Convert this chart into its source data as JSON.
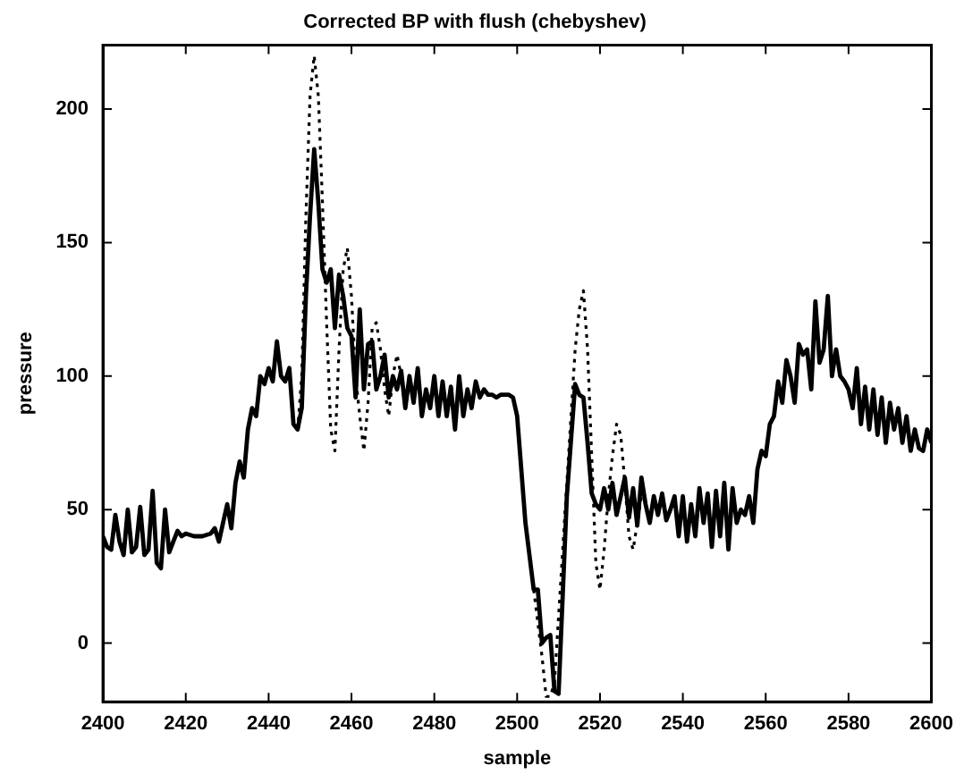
{
  "chart_data": {
    "type": "line",
    "title": "Corrected BP with flush (chebyshev)",
    "xlabel": "sample",
    "ylabel": "pressure",
    "xlim": [
      2400,
      2600
    ],
    "xticks": [
      2400,
      2420,
      2440,
      2460,
      2480,
      2500,
      2520,
      2540,
      2560,
      2580,
      2600
    ],
    "ylim": [
      -22,
      224
    ],
    "yticks": [
      0,
      50,
      100,
      150,
      200
    ],
    "grid": false,
    "legend": false,
    "marker": "none",
    "series": [
      {
        "color": "#000000",
        "line_style": "dotted",
        "x": [
          2447,
          2448,
          2449,
          2450,
          2451,
          2452,
          2453,
          2454,
          2455,
          2456,
          2457,
          2458,
          2459,
          2460,
          2461,
          2462,
          2463,
          2464,
          2465,
          2466,
          2467,
          2468,
          2469,
          2470,
          2471,
          2472,
          2488,
          2504,
          2506,
          2507,
          2508,
          2509,
          2510,
          2512,
          2514,
          2515,
          2516,
          2517,
          2518,
          2519,
          2520,
          2521,
          2522,
          2523,
          2524,
          2525,
          2526,
          2527,
          2528,
          2529,
          2530
        ],
        "values": [
          80,
          100,
          160,
          205,
          220,
          205,
          165,
          120,
          80,
          72,
          110,
          140,
          148,
          130,
          100,
          85,
          72,
          90,
          118,
          120,
          110,
          95,
          85,
          100,
          108,
          100,
          null,
          20,
          -5,
          -20,
          -20,
          -15,
          10,
          60,
          110,
          125,
          132,
          110,
          70,
          30,
          20,
          35,
          55,
          70,
          82,
          78,
          60,
          40,
          35,
          45,
          55
        ]
      },
      {
        "color": "#000000",
        "line_style": "solid",
        "x": [
          2400,
          2401,
          2402,
          2403,
          2404,
          2405,
          2406,
          2407,
          2408,
          2409,
          2410,
          2411,
          2412,
          2413,
          2414,
          2415,
          2416,
          2417,
          2418,
          2419,
          2420,
          2422,
          2424,
          2426,
          2427,
          2428,
          2429,
          2430,
          2431,
          2432,
          2433,
          2434,
          2435,
          2436,
          2437,
          2438,
          2439,
          2440,
          2441,
          2442,
          2443,
          2444,
          2445,
          2446,
          2447,
          2448,
          2449,
          2450,
          2451,
          2452,
          2453,
          2454,
          2455,
          2456,
          2457,
          2458,
          2459,
          2460,
          2461,
          2462,
          2463,
          2464,
          2465,
          2466,
          2467,
          2468,
          2469,
          2470,
          2471,
          2472,
          2473,
          2474,
          2475,
          2476,
          2477,
          2478,
          2479,
          2480,
          2481,
          2482,
          2483,
          2484,
          2485,
          2486,
          2487,
          2488,
          2489,
          2490,
          2491,
          2492,
          2493,
          2494,
          2495,
          2496,
          2497,
          2498,
          2499,
          2500,
          2502,
          2504,
          2505,
          2506,
          2507,
          2508,
          2509,
          2510,
          2512,
          2514,
          2515,
          2516,
          2517,
          2518,
          2519,
          2520,
          2521,
          2522,
          2523,
          2524,
          2525,
          2526,
          2527,
          2528,
          2529,
          2530,
          2531,
          2532,
          2533,
          2534,
          2535,
          2536,
          2537,
          2538,
          2539,
          2540,
          2541,
          2542,
          2543,
          2544,
          2545,
          2546,
          2547,
          2548,
          2549,
          2550,
          2551,
          2552,
          2553,
          2554,
          2555,
          2556,
          2557,
          2558,
          2559,
          2560,
          2561,
          2562,
          2563,
          2564,
          2565,
          2566,
          2567,
          2568,
          2569,
          2570,
          2571,
          2572,
          2573,
          2574,
          2575,
          2576,
          2577,
          2578,
          2579,
          2580,
          2581,
          2582,
          2583,
          2584,
          2585,
          2586,
          2587,
          2588,
          2589,
          2590,
          2591,
          2592,
          2593,
          2594,
          2595,
          2596,
          2597,
          2598,
          2599,
          2600
        ],
        "values": [
          40,
          36,
          35,
          48,
          38,
          33,
          50,
          34,
          36,
          51,
          33,
          35,
          57,
          30,
          28,
          50,
          34,
          38,
          42,
          40,
          41,
          40,
          40,
          41,
          43,
          38,
          45,
          52,
          43,
          60,
          68,
          62,
          80,
          88,
          85,
          100,
          97,
          103,
          98,
          113,
          100,
          98,
          103,
          82,
          80,
          88,
          130,
          160,
          185,
          165,
          140,
          135,
          140,
          118,
          138,
          130,
          118,
          115,
          92,
          125,
          95,
          112,
          113,
          95,
          100,
          108,
          92,
          100,
          95,
          102,
          88,
          100,
          90,
          103,
          85,
          95,
          88,
          100,
          85,
          98,
          85,
          96,
          80,
          100,
          85,
          95,
          88,
          98,
          92,
          95,
          93,
          93,
          92,
          93,
          93,
          93,
          92,
          85,
          45,
          20,
          20,
          0,
          2,
          3,
          -18,
          -19,
          55,
          97,
          93,
          92,
          75,
          56,
          52,
          50,
          58,
          50,
          60,
          48,
          55,
          62,
          47,
          58,
          44,
          62,
          52,
          45,
          55,
          48,
          56,
          46,
          50,
          55,
          40,
          55,
          38,
          52,
          40,
          58,
          45,
          56,
          36,
          57,
          40,
          60,
          35,
          58,
          45,
          50,
          48,
          55,
          45,
          65,
          72,
          70,
          82,
          85,
          98,
          90,
          106,
          100,
          90,
          112,
          108,
          110,
          95,
          128,
          105,
          110,
          130,
          100,
          110,
          100,
          98,
          95,
          88,
          103,
          82,
          96,
          80,
          95,
          78,
          92,
          75,
          90,
          80,
          88,
          75,
          85,
          72,
          80,
          73,
          72,
          80,
          75
        ]
      }
    ]
  }
}
